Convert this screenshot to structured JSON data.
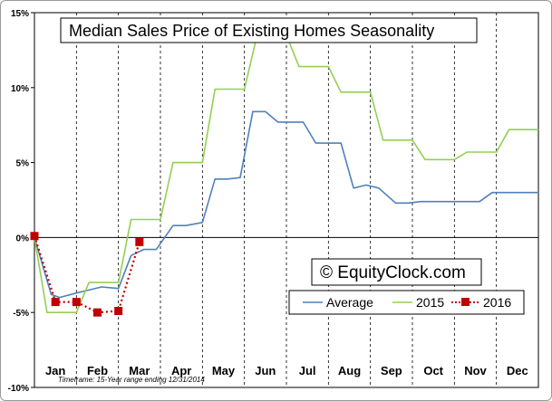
{
  "chart_data": {
    "type": "line",
    "title": "Median Sales Price of Existing Homes Seasonality",
    "x_categories": [
      "Jan",
      "Feb",
      "Mar",
      "Apr",
      "May",
      "Jun",
      "Jul",
      "Aug",
      "Sep",
      "Oct",
      "Nov",
      "Dec"
    ],
    "xlim": [
      0,
      12
    ],
    "y_tick_labels": [
      "15%",
      "10%",
      "5%",
      "0%",
      "-5%",
      "-10%"
    ],
    "y_tick_values": [
      15,
      10,
      5,
      0,
      -5,
      -10
    ],
    "ylim": [
      -10,
      15
    ],
    "grid": "vertical dashed lines at month boundaries; solid horizontal line at 0%",
    "legend_position": "bottom-right",
    "watermark": "© EquityClock.com",
    "footnote": "Timeframe: 15-Year range ending 12/31/2014",
    "series": [
      {
        "name": "Average",
        "color": "#4f81bd",
        "style": "solid",
        "x": [
          0,
          0.4,
          0.6,
          1.0,
          1.3,
          1.6,
          2.0,
          2.3,
          2.6,
          2.9,
          3.3,
          3.6,
          4.0,
          4.3,
          4.6,
          4.9,
          5.2,
          5.5,
          5.8,
          6.1,
          6.4,
          6.7,
          7.0,
          7.3,
          7.6,
          7.9,
          8.2,
          8.6,
          8.9,
          9.2,
          9.6,
          9.9,
          10.3,
          10.6,
          10.9,
          11.2,
          11.5,
          12.0
        ],
        "y": [
          0,
          -3.8,
          -4.0,
          -3.7,
          -3.5,
          -3.3,
          -3.4,
          -1.2,
          -0.8,
          -0.8,
          0.8,
          0.8,
          1.0,
          3.9,
          3.9,
          4.0,
          8.4,
          8.4,
          7.7,
          7.7,
          7.7,
          6.3,
          6.3,
          6.3,
          3.3,
          3.5,
          3.3,
          2.3,
          2.3,
          2.4,
          2.4,
          2.4,
          2.4,
          2.4,
          3.0,
          3.0,
          3.0,
          3.0
        ]
      },
      {
        "name": "2015",
        "color": "#92d050",
        "style": "solid",
        "x": [
          0,
          0.3,
          0.7,
          1.0,
          1.3,
          1.7,
          2.0,
          2.3,
          2.6,
          3.0,
          3.3,
          3.6,
          4.0,
          4.3,
          4.6,
          5.0,
          5.3,
          5.6,
          6.0,
          6.3,
          6.6,
          7.0,
          7.3,
          7.6,
          8.0,
          8.3,
          8.6,
          9.0,
          9.3,
          9.6,
          10.0,
          10.3,
          10.6,
          11.0,
          11.3,
          12.0
        ],
        "y": [
          0,
          -5.0,
          -5.0,
          -5.0,
          -3.0,
          -3.0,
          -3.0,
          1.2,
          1.2,
          1.2,
          5.0,
          5.0,
          5.0,
          9.9,
          9.9,
          9.9,
          13.5,
          13.5,
          13.5,
          11.4,
          11.4,
          11.4,
          9.7,
          9.7,
          9.7,
          6.5,
          6.5,
          6.5,
          5.2,
          5.2,
          5.2,
          5.7,
          5.7,
          5.7,
          7.2,
          7.2
        ]
      },
      {
        "name": "2016",
        "color": "#c00000",
        "style": "dotted-with-square-markers",
        "x": [
          0,
          0.5,
          1.0,
          1.5,
          2.0,
          2.5
        ],
        "y": [
          0.1,
          -4.3,
          -4.3,
          -5.0,
          -4.9,
          -0.3
        ]
      }
    ]
  }
}
